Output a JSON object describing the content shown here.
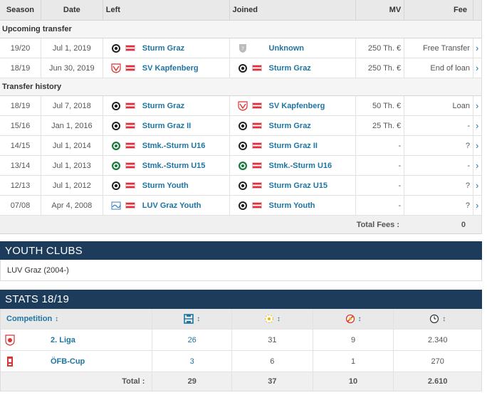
{
  "table": {
    "headers": {
      "season": "Season",
      "date": "Date",
      "left": "Left",
      "joined": "Joined",
      "mv": "MV",
      "fee": "Fee"
    },
    "upcoming_label": "Upcoming transfer",
    "upcoming": [
      {
        "season": "19/20",
        "date": "Jul 1, 2019",
        "left": "Sturm Graz",
        "joined": "Unknown",
        "mv": "250 Th. €",
        "fee": "Free Transfer"
      },
      {
        "season": "18/19",
        "date": "Jun 30, 2019",
        "left": "SV Kapfenberg",
        "joined": "Sturm Graz",
        "mv": "250 Th. €",
        "fee": "End of loan"
      }
    ],
    "history_label": "Transfer history",
    "history": [
      {
        "season": "18/19",
        "date": "Jul 7, 2018",
        "left": "Sturm Graz",
        "joined": "SV Kapfenberg",
        "mv": "50 Th. €",
        "fee": "Loan"
      },
      {
        "season": "15/16",
        "date": "Jan 1, 2016",
        "left": "Sturm Graz II",
        "joined": "Sturm Graz",
        "mv": "25 Th. €",
        "fee": "-"
      },
      {
        "season": "14/15",
        "date": "Jul 1, 2014",
        "left": "Stmk.-Sturm U16",
        "joined": "Sturm Graz II",
        "mv": "-",
        "fee": "?"
      },
      {
        "season": "13/14",
        "date": "Jul 1, 2013",
        "left": "Stmk.-Sturm U15",
        "joined": "Stmk.-Sturm U16",
        "mv": "-",
        "fee": "-"
      },
      {
        "season": "12/13",
        "date": "Jul 1, 2012",
        "left": "Sturm Youth",
        "joined": "Sturm Graz U15",
        "mv": "-",
        "fee": "?"
      },
      {
        "season": "07/08",
        "date": "Apr 4, 2008",
        "left": "LUV Graz Youth",
        "joined": "Sturm Youth",
        "mv": "-",
        "fee": "?"
      }
    ],
    "total_fees_label": "Total Fees :",
    "total_fees_value": "0",
    "arrow": "›"
  },
  "youth": {
    "title": "YOUTH CLUBS",
    "text": "LUV Graz (2004-)"
  },
  "stats": {
    "title": "STATS 18/19",
    "competition_label": "Competition",
    "sort_glyph": "↕",
    "rows": [
      {
        "competition": "2. Liga",
        "apps": "26",
        "goals": "31",
        "cards": "9",
        "minutes": "2.340"
      },
      {
        "competition": "ÖFB-Cup",
        "apps": "3",
        "goals": "6",
        "cards": "1",
        "minutes": "270"
      }
    ],
    "total_label": "Total :",
    "totals": {
      "apps": "29",
      "goals": "37",
      "cards": "10",
      "minutes": "2.610"
    }
  },
  "colors": {
    "link": "#1d75a3",
    "header_bg": "#1d3c5c",
    "austria_red": "#ed2939"
  }
}
